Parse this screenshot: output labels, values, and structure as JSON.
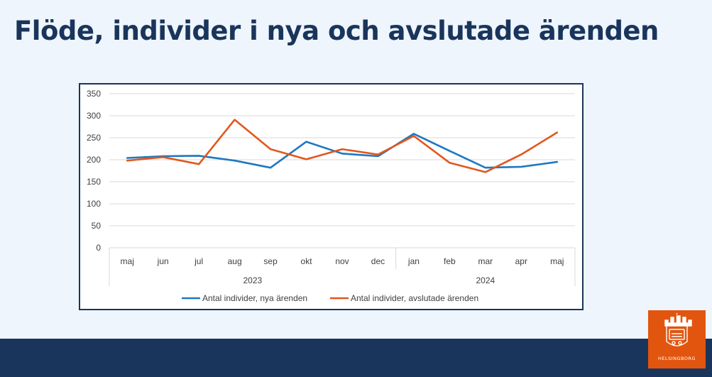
{
  "title": "Flöde, individer i nya och avslutade ärenden",
  "colors": {
    "navy": "#1a355b",
    "orange_brand": "#e2550e",
    "series_new": "#1f78c1",
    "series_closed": "#e2571d"
  },
  "logo": {
    "icon": "castle-crest-icon",
    "text": "HELSINGBORG"
  },
  "chart_data": {
    "type": "line",
    "categories": [
      "maj",
      "jun",
      "jul",
      "aug",
      "sep",
      "okt",
      "nov",
      "dec",
      "jan",
      "feb",
      "mar",
      "apr",
      "maj"
    ],
    "groups": [
      {
        "label": "2023",
        "start": 0,
        "end": 7
      },
      {
        "label": "2024",
        "start": 8,
        "end": 12
      }
    ],
    "ylim": [
      0,
      350
    ],
    "yticks": [
      0,
      50,
      100,
      150,
      200,
      250,
      300,
      350
    ],
    "grid": true,
    "legend": "bottom",
    "series": [
      {
        "name": "Antal individer, nya ärenden",
        "color": "#1f78c1",
        "values": [
          204,
          208,
          209,
          198,
          182,
          241,
          214,
          208,
          259,
          220,
          182,
          184,
          195
        ]
      },
      {
        "name": "Antal individer, avslutade ärenden",
        "color": "#e2571d",
        "values": [
          198,
          206,
          190,
          291,
          224,
          201,
          224,
          212,
          254,
          193,
          172,
          212,
          262
        ]
      }
    ]
  }
}
